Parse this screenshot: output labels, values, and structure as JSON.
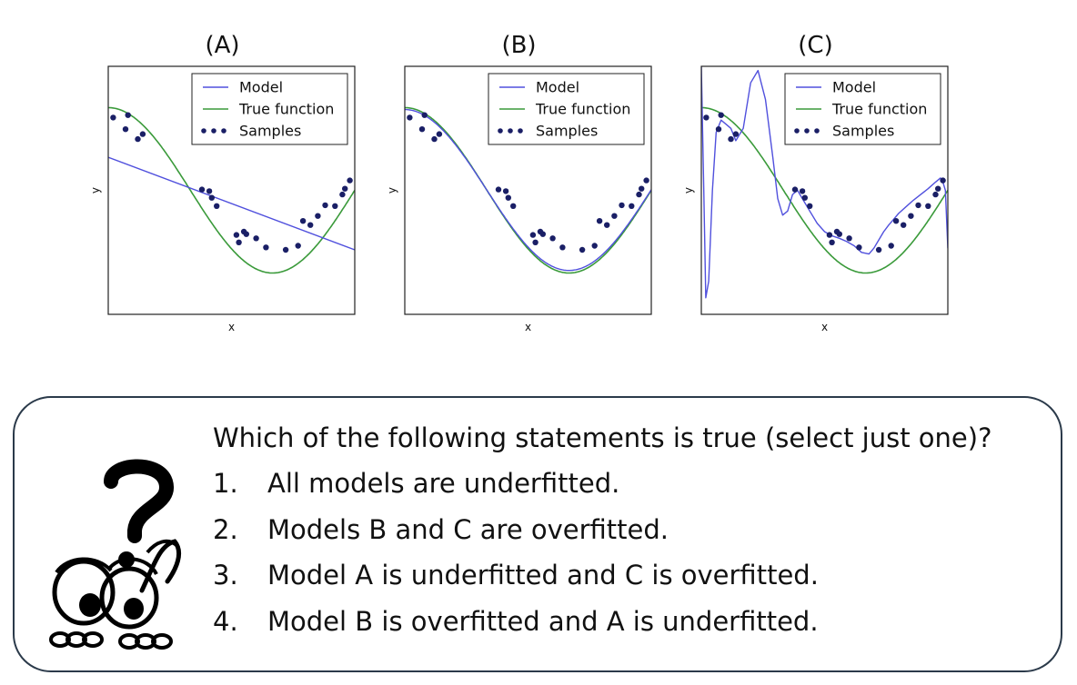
{
  "chart_data": [
    {
      "type": "line",
      "panel_label": "(A)",
      "xlabel": "x",
      "ylabel": "y",
      "legend": [
        "Model",
        "True function",
        "Samples"
      ],
      "legend_position": "top-right",
      "grid": false,
      "xlim": [
        0,
        1
      ],
      "ylim": [
        -1.5,
        1.5
      ],
      "true_function": "cos(1.5*pi*x)",
      "model": "linear fit",
      "series": [
        {
          "name": "Model",
          "x": [
            0,
            1
          ],
          "y": [
            0.4,
            -0.72
          ]
        },
        {
          "name": "True function",
          "expr": "cos(1.5*pi*x)"
        },
        {
          "name": "Samples",
          "x": [
            0.02,
            0.08,
            0.07,
            0.12,
            0.14,
            0.38,
            0.41,
            0.42,
            0.44,
            0.52,
            0.53,
            0.55,
            0.56,
            0.6,
            0.64,
            0.72,
            0.77,
            0.79,
            0.82,
            0.85,
            0.88,
            0.92,
            0.95,
            0.96,
            0.98
          ],
          "y": [
            0.88,
            0.91,
            0.74,
            0.62,
            0.68,
            0.01,
            -0.01,
            -0.09,
            -0.19,
            -0.54,
            -0.63,
            -0.5,
            -0.53,
            -0.58,
            -0.69,
            -0.72,
            -0.67,
            -0.37,
            -0.42,
            -0.31,
            -0.18,
            -0.19,
            -0.05,
            0.02,
            0.12
          ]
        }
      ]
    },
    {
      "type": "line",
      "panel_label": "(B)",
      "xlabel": "x",
      "ylabel": "y",
      "legend": [
        "Model",
        "True function",
        "Samples"
      ],
      "legend_position": "top-right",
      "grid": false,
      "xlim": [
        0,
        1
      ],
      "ylim": [
        -1.5,
        1.5
      ],
      "model": "degree 4 polynomial fit",
      "series": [
        {
          "name": "Model",
          "expr": "close fit to cos(1.5*pi*x)"
        },
        {
          "name": "True function",
          "expr": "cos(1.5*pi*x)"
        },
        {
          "name": "Samples",
          "x": [
            0.02,
            0.08,
            0.07,
            0.12,
            0.14,
            0.38,
            0.41,
            0.42,
            0.44,
            0.52,
            0.53,
            0.55,
            0.56,
            0.6,
            0.64,
            0.72,
            0.77,
            0.79,
            0.82,
            0.85,
            0.88,
            0.92,
            0.95,
            0.96,
            0.98
          ],
          "y": [
            0.88,
            0.91,
            0.74,
            0.62,
            0.68,
            0.01,
            -0.01,
            -0.09,
            -0.19,
            -0.54,
            -0.63,
            -0.5,
            -0.53,
            -0.58,
            -0.69,
            -0.72,
            -0.67,
            -0.37,
            -0.42,
            -0.31,
            -0.18,
            -0.19,
            -0.05,
            0.02,
            0.12
          ]
        }
      ]
    },
    {
      "type": "line",
      "panel_label": "(C)",
      "xlabel": "x",
      "ylabel": "y",
      "legend": [
        "Model",
        "True function",
        "Samples"
      ],
      "legend_position": "top-right",
      "grid": false,
      "xlim": [
        0,
        1
      ],
      "ylim": [
        -1.5,
        1.5
      ],
      "model": "high degree polynomial fit (oscillating)",
      "series": [
        {
          "name": "Model",
          "x": [
            0.0,
            0.01,
            0.018,
            0.03,
            0.045,
            0.06,
            0.08,
            0.1,
            0.12,
            0.14,
            0.17,
            0.2,
            0.23,
            0.26,
            0.29,
            0.31,
            0.33,
            0.35,
            0.37,
            0.39,
            0.41,
            0.44,
            0.47,
            0.5,
            0.53,
            0.56,
            0.59,
            0.62,
            0.65,
            0.68,
            0.7,
            0.72,
            0.74,
            0.76,
            0.78,
            0.8,
            0.83,
            0.86,
            0.89,
            0.92,
            0.95,
            0.97,
            0.98,
            0.99,
            1.0
          ],
          "y": [
            1.5,
            0.0,
            -1.3,
            -1.1,
            0.0,
            0.7,
            0.85,
            0.8,
            0.75,
            0.6,
            0.75,
            1.3,
            1.45,
            1.1,
            0.4,
            -0.1,
            -0.3,
            -0.25,
            -0.05,
            0.0,
            -0.1,
            -0.25,
            -0.4,
            -0.5,
            -0.55,
            -0.58,
            -0.62,
            -0.67,
            -0.75,
            -0.77,
            -0.7,
            -0.6,
            -0.5,
            -0.42,
            -0.35,
            -0.28,
            -0.2,
            -0.12,
            -0.05,
            0.02,
            0.1,
            0.15,
            0.1,
            0.0,
            -0.7
          ]
        },
        {
          "name": "True function",
          "expr": "cos(1.5*pi*x)"
        },
        {
          "name": "Samples",
          "x": [
            0.02,
            0.08,
            0.07,
            0.12,
            0.14,
            0.38,
            0.41,
            0.42,
            0.44,
            0.52,
            0.53,
            0.55,
            0.56,
            0.6,
            0.64,
            0.72,
            0.77,
            0.79,
            0.82,
            0.85,
            0.88,
            0.92,
            0.95,
            0.96,
            0.98
          ],
          "y": [
            0.88,
            0.91,
            0.74,
            0.62,
            0.68,
            0.01,
            -0.01,
            -0.09,
            -0.19,
            -0.54,
            -0.63,
            -0.5,
            -0.53,
            -0.58,
            -0.69,
            -0.72,
            -0.67,
            -0.37,
            -0.42,
            -0.31,
            -0.18,
            -0.19,
            -0.05,
            0.02,
            0.12
          ]
        }
      ]
    }
  ],
  "colors": {
    "model": "#5050dd",
    "true_function": "#3a9a3a",
    "samples": "#1a1f66",
    "axes": "#222222",
    "box_border": "#2b3a4a"
  },
  "question": {
    "prompt": "Which of the following statements is true (select just one)?",
    "options": [
      {
        "num": "1.",
        "text": "All models are underfitted."
      },
      {
        "num": "2.",
        "text": "Models B and C are overfitted."
      },
      {
        "num": "3.",
        "text": "Model A is underfitted and C is overfitted."
      },
      {
        "num": "4.",
        "text": "Model B is overfitted and A is underfitted."
      }
    ]
  },
  "illustration": "thinking-cartoon-icon"
}
